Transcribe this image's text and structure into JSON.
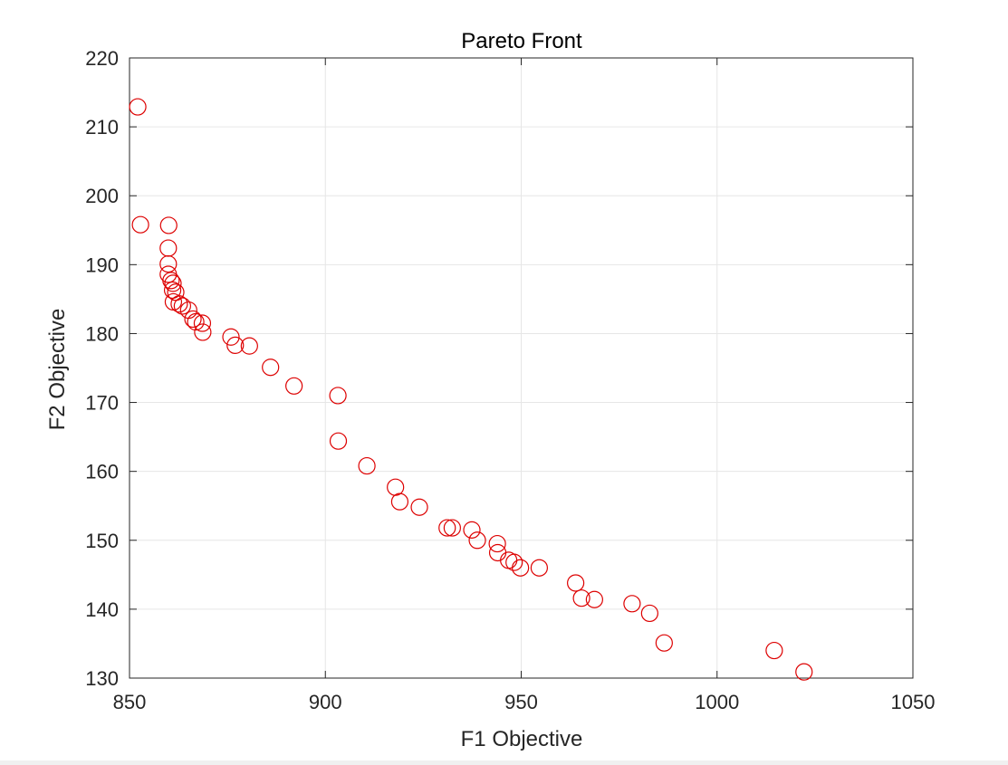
{
  "chart_data": {
    "type": "scatter",
    "title": "Pareto Front",
    "xlabel": "F1 Objective",
    "ylabel": "F2 Objective",
    "xlim": [
      850,
      1050
    ],
    "ylim": [
      130,
      220
    ],
    "xticks": [
      850,
      900,
      950,
      1000,
      1050
    ],
    "yticks": [
      130,
      140,
      150,
      160,
      170,
      180,
      190,
      200,
      210,
      220
    ],
    "grid": true,
    "marker": "circle-open",
    "series": [
      {
        "color": "#dd0000",
        "points": [
          [
            852.1,
            212.9
          ],
          [
            852.8,
            195.8
          ],
          [
            860.0,
            195.7
          ],
          [
            859.9,
            192.4
          ],
          [
            859.9,
            190.1
          ],
          [
            859.9,
            188.6
          ],
          [
            860.6,
            187.7
          ],
          [
            861.1,
            187.3
          ],
          [
            861.0,
            186.3
          ],
          [
            861.8,
            186.0
          ],
          [
            861.2,
            184.6
          ],
          [
            862.7,
            184.3
          ],
          [
            863.5,
            184.0
          ],
          [
            865.1,
            183.4
          ],
          [
            866.2,
            182.1
          ],
          [
            866.9,
            181.7
          ],
          [
            868.6,
            181.5
          ],
          [
            868.7,
            180.2
          ],
          [
            875.9,
            179.5
          ],
          [
            877.0,
            178.3
          ],
          [
            880.6,
            178.2
          ],
          [
            886.0,
            175.1
          ],
          [
            892.0,
            172.4
          ],
          [
            903.2,
            171.0
          ],
          [
            903.3,
            164.4
          ],
          [
            910.6,
            160.8
          ],
          [
            917.9,
            157.7
          ],
          [
            919.0,
            155.6
          ],
          [
            924.0,
            154.8
          ],
          [
            931.1,
            151.8
          ],
          [
            932.4,
            151.8
          ],
          [
            937.4,
            151.5
          ],
          [
            938.8,
            150.0
          ],
          [
            943.9,
            149.5
          ],
          [
            944.0,
            148.2
          ],
          [
            946.8,
            147.1
          ],
          [
            948.2,
            146.8
          ],
          [
            949.8,
            146.0
          ],
          [
            954.6,
            146.0
          ],
          [
            963.9,
            143.8
          ],
          [
            965.4,
            141.6
          ],
          [
            968.7,
            141.4
          ],
          [
            978.3,
            140.8
          ],
          [
            982.8,
            139.4
          ],
          [
            986.5,
            135.1
          ],
          [
            1014.6,
            134.0
          ],
          [
            1022.2,
            130.9
          ]
        ]
      }
    ]
  }
}
